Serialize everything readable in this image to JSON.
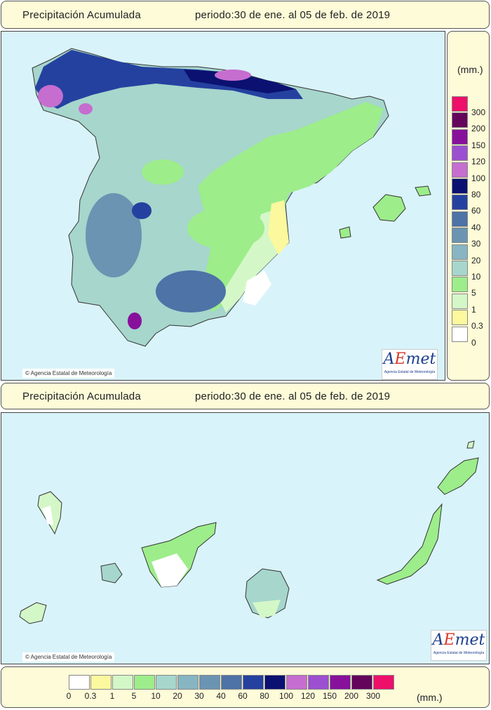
{
  "header_top": {
    "title": "Precipitación Acumulada",
    "period": "periodo:30 de ene. al 05 de feb. de 2019"
  },
  "header_bottom": {
    "title": "Precipitación Acumulada",
    "period": "periodo:30 de ene. al 05 de feb. de 2019"
  },
  "credit_top": "© Agencia Estatal de Meteorología",
  "credit_bottom": "© Agencia Estatal de Meteorología",
  "logo": {
    "mark_a": "A",
    "mark_e": "E",
    "mark_rest": "met",
    "sub": "Agencia Estatal de Meteorología"
  },
  "legend": {
    "unit": "(mm.)",
    "bins": [
      {
        "label": "0",
        "color": "#ffffff"
      },
      {
        "label": "0.3",
        "color": "#fbf89e"
      },
      {
        "label": "1",
        "color": "#d4f7c8"
      },
      {
        "label": "5",
        "color": "#9ded8b"
      },
      {
        "label": "10",
        "color": "#a6d6cc"
      },
      {
        "label": "20",
        "color": "#87b5c2"
      },
      {
        "label": "30",
        "color": "#6a94b2"
      },
      {
        "label": "40",
        "color": "#4d73a7"
      },
      {
        "label": "60",
        "color": "#2541a0"
      },
      {
        "label": "80",
        "color": "#0b1170"
      },
      {
        "label": "100",
        "color": "#c66dd0"
      },
      {
        "label": "120",
        "color": "#9c4fd0"
      },
      {
        "label": "150",
        "color": "#88119c"
      },
      {
        "label": "200",
        "color": "#64045a"
      },
      {
        "label": "300",
        "color": "#ee0f6a"
      }
    ]
  }
}
